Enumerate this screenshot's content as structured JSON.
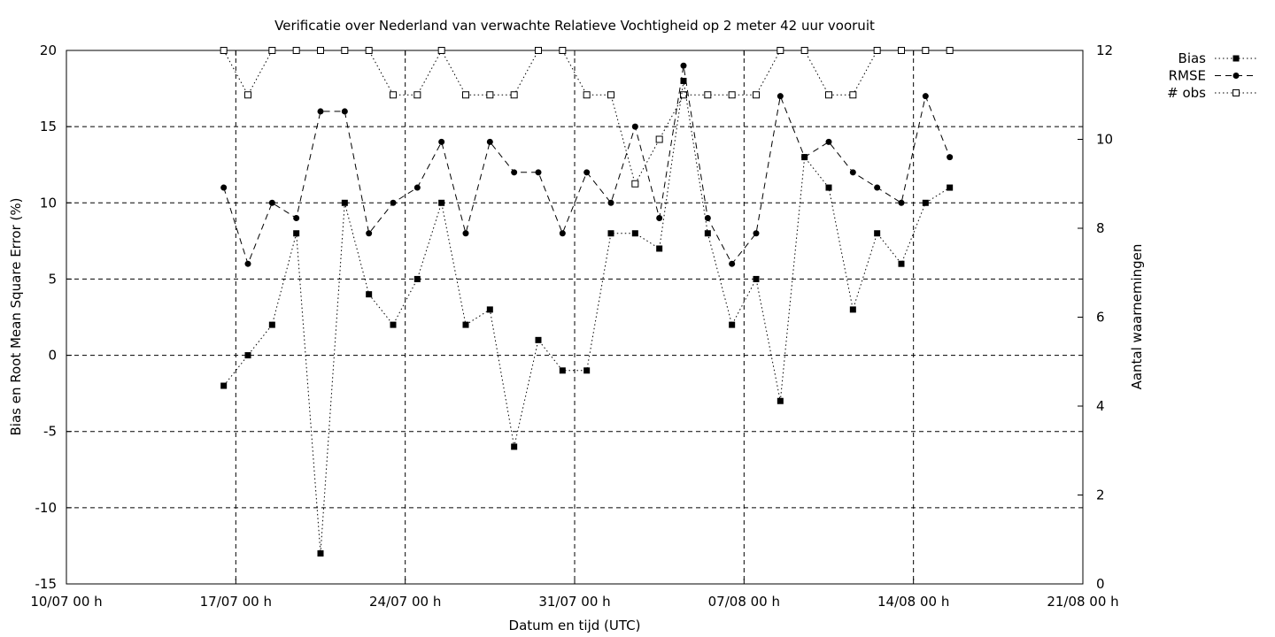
{
  "chart_data": {
    "type": "line",
    "title": "Verificatie over Nederland van verwachte Relatieve Vochtigheid op 2 meter 42 uur vooruit",
    "xlabel": "Datum en tijd (UTC)",
    "ylabel": "Bias en Root Mean Square Error (%)",
    "y2label": "Aantal waarnemingen",
    "xlim": [
      "2023-07-10",
      "2023-08-21"
    ],
    "ylim": [
      -15,
      20
    ],
    "y2lim": [
      0,
      12
    ],
    "x_ticks": [
      {
        "date": "2023-07-10",
        "label": "10/07 00 h"
      },
      {
        "date": "2023-07-17",
        "label": "17/07 00 h"
      },
      {
        "date": "2023-07-24",
        "label": "24/07 00 h"
      },
      {
        "date": "2023-07-31",
        "label": "31/07 00 h"
      },
      {
        "date": "2023-08-07",
        "label": "07/08 00 h"
      },
      {
        "date": "2023-08-14",
        "label": "14/08 00 h"
      },
      {
        "date": "2023-08-21",
        "label": "21/08 00 h"
      }
    ],
    "y_ticks": [
      {
        "value": -15,
        "label": "-15"
      },
      {
        "value": -10,
        "label": "-10"
      },
      {
        "value": -5,
        "label": "-5"
      },
      {
        "value": 0,
        "label": "0"
      },
      {
        "value": 5,
        "label": "5"
      },
      {
        "value": 10,
        "label": "10"
      },
      {
        "value": 15,
        "label": "15"
      },
      {
        "value": 20,
        "label": "20"
      }
    ],
    "y2_ticks": [
      {
        "value": 0,
        "label": "0"
      },
      {
        "value": 2,
        "label": "2"
      },
      {
        "value": 4,
        "label": "4"
      },
      {
        "value": 6,
        "label": "6"
      },
      {
        "value": 8,
        "label": "8"
      },
      {
        "value": 10,
        "label": "10"
      },
      {
        "value": 12,
        "label": "12"
      }
    ],
    "grid": true,
    "legend_position": "top-right outside",
    "x": [
      "2023-07-16 12:00",
      "2023-07-17 12:00",
      "2023-07-18 12:00",
      "2023-07-19 12:00",
      "2023-07-20 12:00",
      "2023-07-21 12:00",
      "2023-07-22 12:00",
      "2023-07-23 12:00",
      "2023-07-24 12:00",
      "2023-07-25 12:00",
      "2023-07-26 12:00",
      "2023-07-27 12:00",
      "2023-07-28 12:00",
      "2023-07-29 12:00",
      "2023-07-30 12:00",
      "2023-07-31 12:00",
      "2023-08-01 12:00",
      "2023-08-02 12:00",
      "2023-08-03 12:00",
      "2023-08-04 12:00",
      "2023-08-05 12:00",
      "2023-08-06 12:00",
      "2023-08-07 12:00",
      "2023-08-08 12:00",
      "2023-08-09 12:00",
      "2023-08-10 12:00",
      "2023-08-11 12:00",
      "2023-08-12 12:00",
      "2023-08-13 12:00",
      "2023-08-14 12:00",
      "2023-08-15 12:00"
    ],
    "series": [
      {
        "name": "Bias",
        "axis": "y",
        "marker": "filled-square",
        "line": "dotted",
        "values": [
          -2,
          0,
          2,
          8,
          -13,
          10,
          4,
          2,
          5,
          10,
          2,
          3,
          -6,
          1,
          -1,
          -1,
          8,
          8,
          7,
          18,
          8,
          2,
          5,
          -3,
          13,
          11,
          3,
          8,
          6,
          10,
          11
        ]
      },
      {
        "name": "RMSE",
        "axis": "y",
        "marker": "filled-circle",
        "line": "dashed",
        "values": [
          11,
          6,
          10,
          9,
          16,
          16,
          8,
          10,
          11,
          14,
          8,
          14,
          12,
          12,
          8,
          12,
          10,
          15,
          9,
          19,
          9,
          6,
          8,
          17,
          13,
          14,
          12,
          11,
          10,
          17,
          13
        ]
      },
      {
        "name": "# obs",
        "axis": "y2",
        "marker": "open-square",
        "line": "dotted",
        "values": [
          12,
          11,
          12,
          12,
          12,
          12,
          12,
          11,
          11,
          12,
          11,
          11,
          11,
          12,
          12,
          11,
          11,
          9,
          10,
          11,
          11,
          11,
          11,
          12,
          12,
          11,
          11,
          12,
          12,
          12,
          12
        ]
      }
    ]
  }
}
